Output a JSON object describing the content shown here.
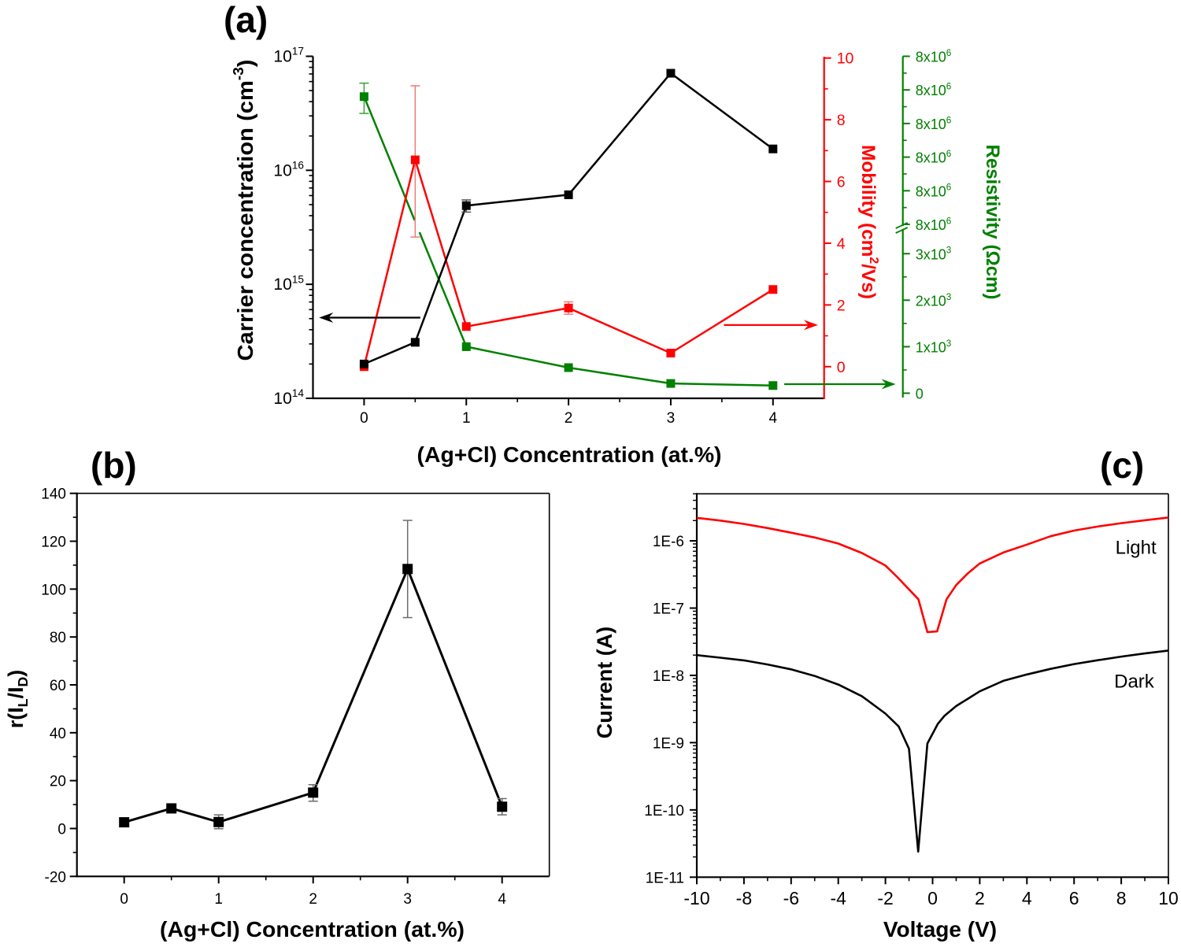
{
  "chart_data": [
    {
      "panel": "a",
      "panel_label": "(a)",
      "type": "line",
      "xlabel": "(Ag+Cl) Concentration (at.%)",
      "xlim": [
        -0.5,
        4.5
      ],
      "xticks": [
        0,
        1,
        2,
        3,
        4
      ],
      "xtick_labels": [
        "0",
        "1",
        "2",
        "3",
        "4"
      ],
      "xminor_ticks": [
        0.5,
        1.5,
        2.5,
        3.5
      ],
      "grid": false,
      "y_axes": {
        "carrier": {
          "position": "left",
          "scale": "log",
          "color": "#000000",
          "label": [
            {
              "t": "Carrier concentration (cm"
            },
            {
              "t": "-3",
              "sup": true
            },
            {
              "t": ")"
            }
          ],
          "ylim": [
            100000000000000.0,
            1e+17
          ],
          "ticks": [
            100000000000000.0,
            1000000000000000.0,
            1e+16,
            1e+17
          ],
          "tick_labels": [
            [
              {
                "t": "10"
              },
              {
                "t": "14",
                "sup": true
              }
            ],
            [
              {
                "t": "10"
              },
              {
                "t": "15",
                "sup": true
              }
            ],
            [
              {
                "t": "10"
              },
              {
                "t": "16",
                "sup": true
              }
            ],
            [
              {
                "t": "10"
              },
              {
                "t": "17",
                "sup": true
              }
            ]
          ]
        },
        "mobility": {
          "position": "right",
          "scale": "linear",
          "color": "#ff0000",
          "label": [
            {
              "t": "Mobility (cm"
            },
            {
              "t": "2",
              "sup": true
            },
            {
              "t": "/Vs)"
            }
          ],
          "ylim": [
            -1,
            10
          ],
          "ticks": [
            0,
            2,
            4,
            6,
            8,
            10
          ],
          "tick_labels": [
            "0",
            "2",
            "4",
            "6",
            "8",
            "10"
          ],
          "minor_ticks": [
            1,
            3,
            5,
            7,
            9
          ]
        },
        "resistivity": {
          "position": "right-offset",
          "scale": "linear",
          "broken": true,
          "color": "#008000",
          "label": "Resistivity (Ωcm)",
          "segments": [
            {
              "ylim": [
                -110,
                3580
              ],
              "ticks": [
                0,
                1000,
                2000,
                3000
              ],
              "tick_labels": [
                [
                  {
                    "t": "0"
                  }
                ],
                [
                  {
                    "t": "1x10"
                  },
                  {
                    "t": "3",
                    "sup": true
                  }
                ],
                [
                  {
                    "t": "2x10"
                  },
                  {
                    "t": "3",
                    "sup": true
                  }
                ],
                [
                  {
                    "t": "3x10"
                  },
                  {
                    "t": "3",
                    "sup": true
                  }
                ]
              ],
              "minor_ticks": [
                500,
                1500,
                2500
              ]
            },
            {
              "ylim": [
                7893000,
                8400000
              ],
              "ticks": [
                7900000,
                8000000,
                8100000,
                8200000,
                8300000,
                8400000
              ],
              "tick_labels": [
                [
                  {
                    "t": "8x10"
                  },
                  {
                    "t": "6",
                    "sup": true
                  }
                ],
                [
                  {
                    "t": "8x10"
                  },
                  {
                    "t": "6",
                    "sup": true
                  }
                ],
                [
                  {
                    "t": "8x10"
                  },
                  {
                    "t": "6",
                    "sup": true
                  }
                ],
                [
                  {
                    "t": "8x10"
                  },
                  {
                    "t": "6",
                    "sup": true
                  }
                ],
                [
                  {
                    "t": "8x10"
                  },
                  {
                    "t": "6",
                    "sup": true
                  }
                ],
                [
                  {
                    "t": "8x10"
                  },
                  {
                    "t": "6",
                    "sup": true
                  }
                ]
              ],
              "minor_ticks": [
                7950000,
                8050000,
                8150000,
                8250000,
                8350000
              ]
            }
          ]
        }
      },
      "series": [
        {
          "name": "Resistivity",
          "y_axis": "resistivity",
          "color": "#008000",
          "error_color": "#3aa03a",
          "points": [
            {
              "x": 0,
              "y": 8280000,
              "err": [
                8230000,
                8320000
              ]
            },
            {
              "x": 1,
              "y": 1000
            },
            {
              "x": 2,
              "y": 550
            },
            {
              "x": 3,
              "y": 210
            },
            {
              "x": 4,
              "y": 165
            }
          ]
        },
        {
          "name": "Mobility",
          "y_axis": "mobility",
          "color": "#ff0000",
          "error_color": "#f07878",
          "points": [
            {
              "x": 0,
              "y": 0.0
            },
            {
              "x": 0.5,
              "y": 6.7,
              "err": [
                4.2,
                9.1
              ]
            },
            {
              "x": 1,
              "y": 1.3
            },
            {
              "x": 2,
              "y": 1.9,
              "err": [
                1.7,
                2.1
              ]
            },
            {
              "x": 3,
              "y": 0.44
            },
            {
              "x": 4,
              "y": 2.5
            }
          ]
        },
        {
          "name": "Carrier concentration",
          "y_axis": "carrier",
          "color": "#000000",
          "error_color": "#555555",
          "points": [
            {
              "x": 0,
              "y": 200000000000000.0
            },
            {
              "x": 0.5,
              "y": 310000000000000.0
            },
            {
              "x": 1,
              "y": 4900000000000000.0,
              "err": [
                4300000000000000.0,
                5500000000000000.0
              ]
            },
            {
              "x": 2,
              "y": 6100000000000000.0
            },
            {
              "x": 3,
              "y": 7.1e+16
            },
            {
              "x": 4,
              "y": 1.54e+16
            }
          ]
        }
      ],
      "annotations": [
        {
          "type": "arrow",
          "y_axis": "carrier",
          "from": [
            0.55,
            510000000000000.0
          ],
          "to": [
            -0.44,
            510000000000000.0
          ],
          "color": "#000000"
        },
        {
          "type": "arrow",
          "y_axis": "mobility",
          "from": [
            3.52,
            1.35
          ],
          "to": [
            4.44,
            1.35
          ],
          "color": "#ff0000"
        },
        {
          "type": "arrow",
          "y_axis": "resistivity",
          "from": [
            4.11,
            195
          ],
          "to": [
            5.2,
            195
          ],
          "color": "#008000"
        }
      ]
    },
    {
      "panel": "b",
      "panel_label": "(b)",
      "type": "line",
      "xlabel": "(Ag+Cl) Concentration (at.%)",
      "ylabel": [
        {
          "t": "r(I"
        },
        {
          "t": "L",
          "sub": true
        },
        {
          "t": "/I"
        },
        {
          "t": "D",
          "sub": true
        },
        {
          "t": ")"
        }
      ],
      "xlim": [
        -0.5,
        4.5
      ],
      "xticks": [
        0,
        1,
        2,
        3,
        4
      ],
      "xtick_labels": [
        "0",
        "1",
        "2",
        "3",
        "4"
      ],
      "xminor_ticks": [
        0.5,
        1.5,
        2.5,
        3.5
      ],
      "ylim": [
        -20,
        140
      ],
      "yticks": [
        -20,
        0,
        20,
        40,
        60,
        80,
        100,
        120,
        140
      ],
      "ytick_labels": [
        "-20",
        "0",
        "20",
        "40",
        "60",
        "80",
        "100",
        "120",
        "140"
      ],
      "yminor_ticks": [
        -10,
        10,
        30,
        50,
        70,
        90,
        110,
        130
      ],
      "grid": false,
      "series": [
        {
          "name": "r(IL/ID)",
          "color": "#000000",
          "error_color": "#6b6b6b",
          "points": [
            {
              "x": 0,
              "y": 2.6
            },
            {
              "x": 0.5,
              "y": 8.4
            },
            {
              "x": 1,
              "y": 2.7,
              "err": [
                -0.1,
                5.7
              ]
            },
            {
              "x": 2,
              "y": 15.0,
              "err": [
                11.4,
                18.3
              ]
            },
            {
              "x": 3,
              "y": 108.4,
              "err": [
                88.1,
                128.7
              ]
            },
            {
              "x": 4,
              "y": 9.1,
              "err": [
                5.7,
                12.5
              ]
            }
          ]
        }
      ]
    },
    {
      "panel": "c",
      "panel_label": "(c)",
      "type": "line",
      "xlabel": "Voltage (V)",
      "ylabel": "Current (A)",
      "xlim": [
        -10,
        10
      ],
      "xticks": [
        -10,
        -8,
        -6,
        -4,
        -2,
        0,
        2,
        4,
        6,
        8,
        10
      ],
      "xtick_labels": [
        "-10",
        "-8",
        "-6",
        "-4",
        "-2",
        "0",
        "2",
        "4",
        "6",
        "8",
        "10"
      ],
      "xminor_ticks": [
        -9,
        -7,
        -5,
        -3,
        -1,
        1,
        3,
        5,
        7,
        9
      ],
      "yscale": "log",
      "ylim": [
        1e-11,
        5e-06
      ],
      "yticks": [
        1e-11,
        1e-10,
        1e-09,
        1e-08,
        1e-07,
        1e-06
      ],
      "ytick_labels": [
        "1E-11",
        "1E-10",
        "1E-9",
        "1E-8",
        "1E-7",
        "1E-6"
      ],
      "grid": false,
      "series": [
        {
          "name": "Light",
          "color": "#ff0000",
          "points": [
            [
              -10,
              2.19e-06
            ],
            [
              -9,
              2e-06
            ],
            [
              -8,
              1.78e-06
            ],
            [
              -7,
              1.55e-06
            ],
            [
              -6,
              1.32e-06
            ],
            [
              -5,
              1.12e-06
            ],
            [
              -4,
              9.1e-07
            ],
            [
              -3,
              6.6e-07
            ],
            [
              -2,
              4.3e-07
            ],
            [
              -1.5,
              2.9e-07
            ],
            [
              -1,
              1.9e-07
            ],
            [
              -0.6,
              1.35e-07
            ],
            [
              -0.22,
              4.4e-08
            ],
            [
              0.19,
              4.5e-08
            ],
            [
              0.59,
              1.35e-07
            ],
            [
              1,
              2.2e-07
            ],
            [
              1.5,
              3.3e-07
            ],
            [
              2,
              4.6e-07
            ],
            [
              3,
              6.7e-07
            ],
            [
              4,
              8.8e-07
            ],
            [
              5,
              1.17e-06
            ],
            [
              6,
              1.42e-06
            ],
            [
              7,
              1.63e-06
            ],
            [
              8,
              1.83e-06
            ],
            [
              9,
              2.02e-06
            ],
            [
              10,
              2.22e-06
            ]
          ]
        },
        {
          "name": "Dark",
          "color": "#000000",
          "points": [
            [
              -10,
              2e-08
            ],
            [
              -9,
              1.83e-08
            ],
            [
              -8,
              1.67e-08
            ],
            [
              -7,
              1.45e-08
            ],
            [
              -6,
              1.23e-08
            ],
            [
              -5,
              9.8e-09
            ],
            [
              -4,
              7.3e-09
            ],
            [
              -3,
              4.9e-09
            ],
            [
              -2,
              2.7e-09
            ],
            [
              -1.44,
              1.74e-09
            ],
            [
              -1.0,
              8.1e-10
            ],
            [
              -0.61,
              2.4e-11
            ],
            [
              -0.22,
              9.7e-10
            ],
            [
              0.22,
              1.9e-09
            ],
            [
              0.5,
              2.5e-09
            ],
            [
              1,
              3.5e-09
            ],
            [
              1.5,
              4.5e-09
            ],
            [
              2,
              5.8e-09
            ],
            [
              3,
              8.3e-09
            ],
            [
              4,
              1.03e-08
            ],
            [
              5,
              1.25e-08
            ],
            [
              6,
              1.47e-08
            ],
            [
              7,
              1.68e-08
            ],
            [
              8,
              1.9e-08
            ],
            [
              9,
              2.12e-08
            ],
            [
              10,
              2.34e-08
            ]
          ]
        }
      ],
      "annotations": [
        {
          "type": "text",
          "text": "Light",
          "x": 7.75,
          "y": 6.4e-07,
          "color": "#000000"
        },
        {
          "type": "text",
          "text": "Dark",
          "x": 7.7,
          "y": 6.6e-09,
          "color": "#000000"
        }
      ]
    }
  ]
}
